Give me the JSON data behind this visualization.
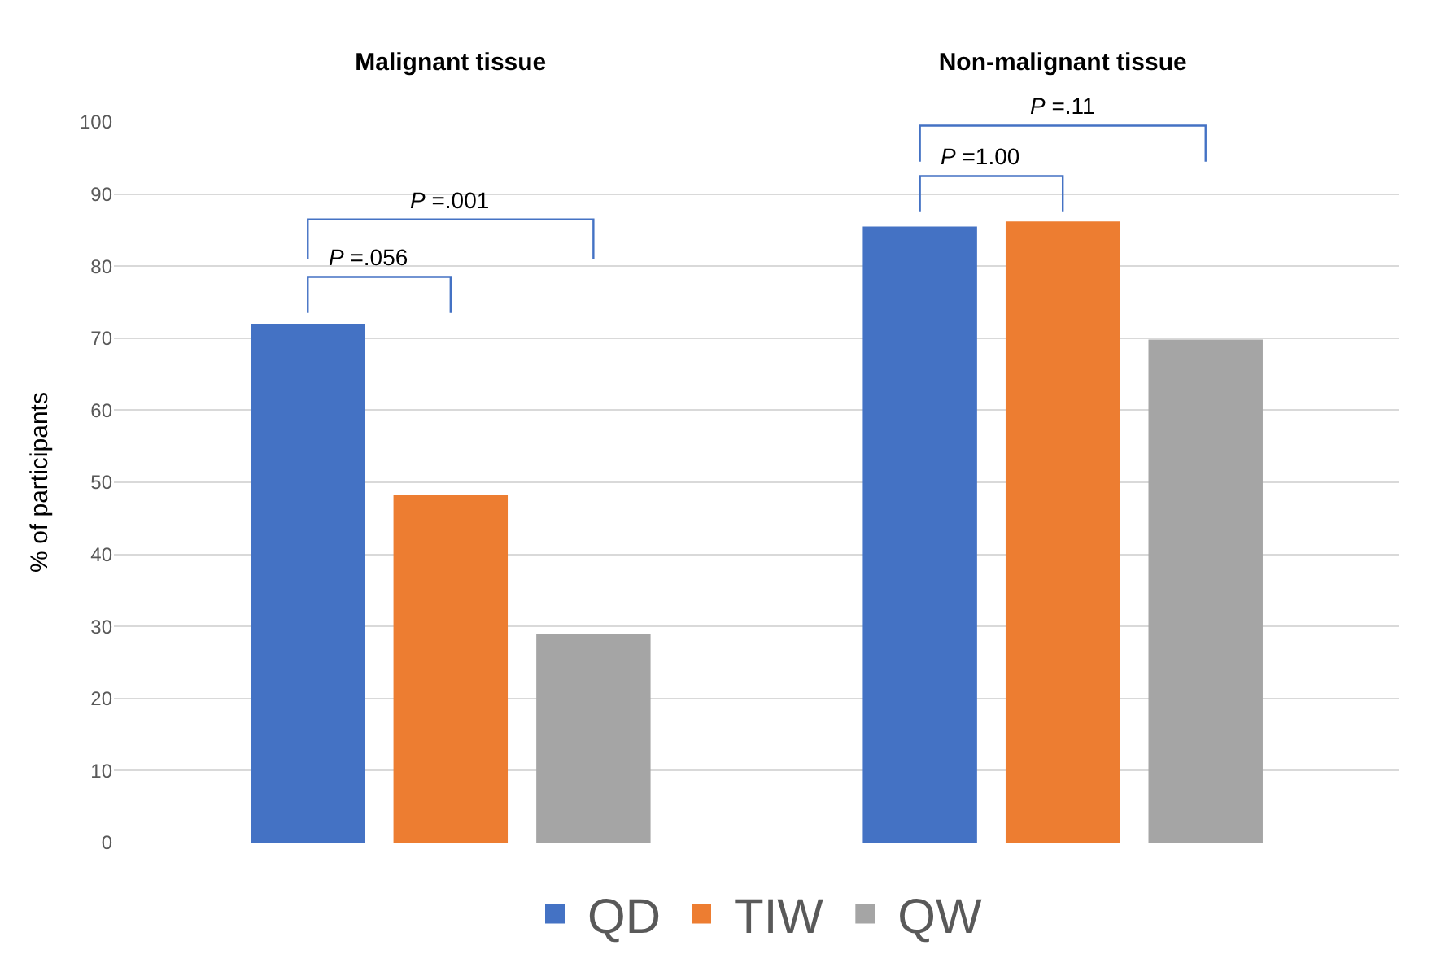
{
  "chart_data": {
    "type": "bar",
    "ylabel": "% of participants",
    "categories": [
      "Malignant tissue",
      "Non-malignant tissue"
    ],
    "series": [
      {
        "name": "QD",
        "color": "#4472c4",
        "values": [
          72,
          85.5
        ]
      },
      {
        "name": "TIW",
        "color": "#ed7d31",
        "values": [
          48.3,
          86.2
        ]
      },
      {
        "name": "QW",
        "color": "#a5a5a5",
        "values": [
          28.9,
          69.8
        ]
      }
    ],
    "ylim": [
      0,
      100
    ],
    "yticks": [
      0,
      10,
      20,
      30,
      40,
      50,
      60,
      70,
      80,
      90,
      100
    ],
    "grid": "y",
    "legend": "bottom",
    "annotations": [
      "P =.056",
      "P =.001",
      "P =1.00",
      "P =.11"
    ]
  }
}
